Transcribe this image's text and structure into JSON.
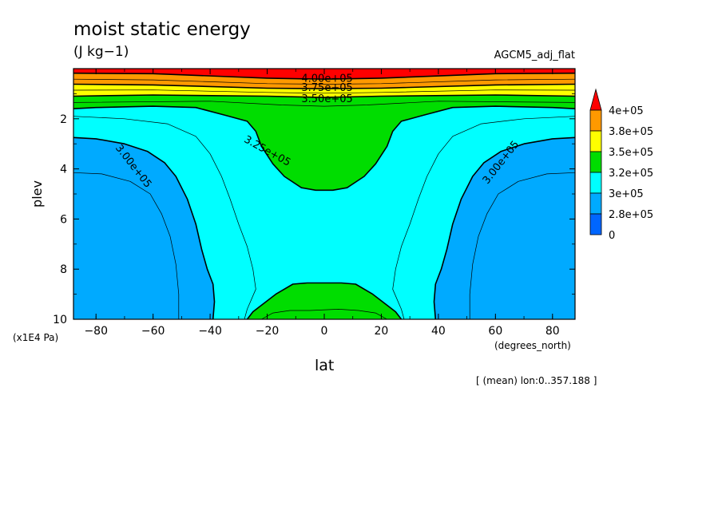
{
  "chart_data": {
    "type": "contour",
    "title": "moist static energy",
    "units": "(J kg−1)",
    "run_label": "AGCM5_adj_flat",
    "xlabel": "lat",
    "x_units": "(degrees_north)",
    "ylabel": "plev",
    "y_units": "(x1E4 Pa)",
    "note": "[ (mean) lon:0..357.188 ]",
    "xlim": [
      -87.9,
      87.9
    ],
    "ylim": [
      10,
      0
    ],
    "x_ticks": [
      "−80",
      "−60",
      "−40",
      "−20",
      "0",
      "20",
      "40",
      "60",
      "80"
    ],
    "x_tick_values": [
      -80,
      -60,
      -40,
      -20,
      0,
      20,
      40,
      60,
      80
    ],
    "y_ticks": [
      "2",
      "4",
      "6",
      "8",
      "10"
    ],
    "y_tick_values": [
      2,
      4,
      6,
      8,
      10
    ],
    "contour_labels": [
      "4.00e+05",
      "3.75e+05",
      "3.50e+05",
      "3.25e+05",
      "3.00e+05",
      "3.00e+05"
    ],
    "colorbar": {
      "labels": [
        "4e+05",
        "3.8e+05",
        "3.5e+05",
        "3.2e+05",
        "3e+05",
        "2.8e+05",
        "0"
      ],
      "colors": [
        "#ff0000",
        "#ff9900",
        "#ffff00",
        "#00dd00",
        "#00ffff",
        "#00aaff",
        "#0066ff"
      ],
      "extend_top": true
    },
    "regions": [
      {
        "name": "3e+05-3.25e+05",
        "color": "#00ffff",
        "polygon": [
          [
            -87.9,
            10
          ],
          [
            87.9,
            10
          ],
          [
            87.9,
            0
          ],
          [
            -87.9,
            0
          ]
        ]
      },
      {
        "name": "2.75e+05-3e+05 south",
        "color": "#00aaff",
        "polygon": [
          [
            -87.9,
            2.75
          ],
          [
            -80,
            2.8
          ],
          [
            -70,
            3.0
          ],
          [
            -62,
            3.3
          ],
          [
            -56,
            3.75
          ],
          [
            -52,
            4.3
          ],
          [
            -48,
            5.2
          ],
          [
            -45,
            6.2
          ],
          [
            -43,
            7.2
          ],
          [
            -41,
            8.0
          ],
          [
            -39,
            8.6
          ],
          [
            -38.5,
            9.3
          ],
          [
            -39,
            10
          ],
          [
            -87.9,
            10
          ]
        ]
      },
      {
        "name": "2.75e+05-3e+05 north",
        "color": "#00aaff",
        "polygon": [
          [
            87.9,
            2.75
          ],
          [
            80,
            2.8
          ],
          [
            70,
            3.0
          ],
          [
            62,
            3.3
          ],
          [
            56,
            3.75
          ],
          [
            52,
            4.3
          ],
          [
            48,
            5.2
          ],
          [
            45,
            6.2
          ],
          [
            43,
            7.2
          ],
          [
            41,
            8.0
          ],
          [
            39,
            8.6
          ],
          [
            38.5,
            9.3
          ],
          [
            39,
            10
          ],
          [
            87.9,
            10
          ]
        ]
      },
      {
        "name": "3.25e+05-3.5e+05",
        "color": "#00dd00",
        "polygon": [
          [
            -87.9,
            1.6
          ],
          [
            -80,
            1.55
          ],
          [
            -60,
            1.5
          ],
          [
            -45,
            1.55
          ],
          [
            -35,
            1.85
          ],
          [
            -27,
            2.1
          ],
          [
            -24,
            2.5
          ],
          [
            -22,
            3.1
          ],
          [
            -18,
            3.8
          ],
          [
            -14,
            4.3
          ],
          [
            -8,
            4.75
          ],
          [
            -3,
            4.85
          ],
          [
            3,
            4.85
          ],
          [
            8,
            4.75
          ],
          [
            14,
            4.3
          ],
          [
            18,
            3.8
          ],
          [
            22,
            3.1
          ],
          [
            24,
            2.5
          ],
          [
            27,
            2.1
          ],
          [
            35,
            1.85
          ],
          [
            45,
            1.55
          ],
          [
            60,
            1.5
          ],
          [
            80,
            1.55
          ],
          [
            87.9,
            1.6
          ],
          [
            87.9,
            0
          ],
          [
            -87.9,
            0
          ]
        ]
      },
      {
        "name": "3.25e+05-3.5e+05 surface",
        "color": "#00dd00",
        "polygon": [
          [
            -27,
            10
          ],
          [
            -25,
            9.7
          ],
          [
            -21,
            9.35
          ],
          [
            -17,
            9.0
          ],
          [
            -11,
            8.6
          ],
          [
            -6,
            8.55
          ],
          [
            6,
            8.55
          ],
          [
            11,
            8.6
          ],
          [
            17,
            9.0
          ],
          [
            21,
            9.35
          ],
          [
            25,
            9.7
          ],
          [
            27,
            10
          ]
        ]
      },
      {
        "name": "3.5e+05-3.75e+05",
        "color": "#ffff00",
        "polygon": [
          [
            -87.9,
            1.1
          ],
          [
            -60,
            1.05
          ],
          [
            -20,
            1.1
          ],
          [
            0,
            1.15
          ],
          [
            20,
            1.1
          ],
          [
            60,
            1.05
          ],
          [
            87.9,
            1.1
          ],
          [
            87.9,
            0
          ],
          [
            -87.9,
            0
          ]
        ]
      },
      {
        "name": "3.75e+05-4e+05",
        "color": "#ff9900",
        "polygon": [
          [
            -87.9,
            0.62
          ],
          [
            -60,
            0.65
          ],
          [
            -20,
            0.78
          ],
          [
            0,
            0.8
          ],
          [
            20,
            0.78
          ],
          [
            60,
            0.65
          ],
          [
            87.9,
            0.62
          ],
          [
            87.9,
            0
          ],
          [
            -87.9,
            0
          ]
        ]
      },
      {
        "name": ">4e+05",
        "color": "#ff0000",
        "polygon": [
          [
            -87.9,
            0.18
          ],
          [
            -60,
            0.2
          ],
          [
            -20,
            0.38
          ],
          [
            0,
            0.42
          ],
          [
            20,
            0.38
          ],
          [
            60,
            0.2
          ],
          [
            87.9,
            0.18
          ],
          [
            87.9,
            0
          ],
          [
            -87.9,
            0
          ]
        ]
      }
    ],
    "contours": [
      {
        "level": "3.00e+05",
        "bold": true,
        "points": [
          [
            -87.9,
            2.75
          ],
          [
            -80,
            2.8
          ],
          [
            -70,
            3.0
          ],
          [
            -62,
            3.3
          ],
          [
            -56,
            3.75
          ],
          [
            -52,
            4.3
          ],
          [
            -48,
            5.2
          ],
          [
            -45,
            6.2
          ],
          [
            -43,
            7.2
          ],
          [
            -41,
            8.0
          ],
          [
            -39,
            8.6
          ],
          [
            -38.5,
            9.3
          ],
          [
            -39,
            10
          ]
        ]
      },
      {
        "level": "3.00e+05",
        "bold": true,
        "points": [
          [
            87.9,
            2.75
          ],
          [
            80,
            2.8
          ],
          [
            70,
            3.0
          ],
          [
            62,
            3.3
          ],
          [
            56,
            3.75
          ],
          [
            52,
            4.3
          ],
          [
            48,
            5.2
          ],
          [
            45,
            6.2
          ],
          [
            43,
            7.2
          ],
          [
            41,
            8.0
          ],
          [
            39,
            8.6
          ],
          [
            38.5,
            9.3
          ],
          [
            39,
            10
          ]
        ]
      },
      {
        "level": "2.875e+05",
        "bold": false,
        "points": [
          [
            -87.9,
            4.15
          ],
          [
            -78,
            4.2
          ],
          [
            -68,
            4.5
          ],
          [
            -61,
            5.0
          ],
          [
            -57,
            5.8
          ],
          [
            -54,
            6.7
          ],
          [
            -52,
            7.8
          ],
          [
            -51,
            9.0
          ],
          [
            -51,
            10
          ]
        ]
      },
      {
        "level": "2.875e+05",
        "bold": false,
        "points": [
          [
            87.9,
            4.15
          ],
          [
            78,
            4.2
          ],
          [
            68,
            4.5
          ],
          [
            61,
            5.0
          ],
          [
            57,
            5.8
          ],
          [
            54,
            6.7
          ],
          [
            52,
            7.8
          ],
          [
            51,
            9.0
          ],
          [
            51,
            10
          ]
        ]
      },
      {
        "level": "3.125e+05",
        "bold": false,
        "points": [
          [
            -87.9,
            1.9
          ],
          [
            -70,
            2.0
          ],
          [
            -55,
            2.2
          ],
          [
            -45,
            2.7
          ],
          [
            -40,
            3.4
          ],
          [
            -36,
            4.3
          ],
          [
            -33,
            5.2
          ],
          [
            -30,
            6.2
          ],
          [
            -27,
            7.1
          ],
          [
            -25,
            8.0
          ],
          [
            -24,
            8.8
          ],
          [
            -27,
            9.6
          ],
          [
            -28,
            10
          ]
        ]
      },
      {
        "level": "3.125e+05",
        "bold": false,
        "points": [
          [
            87.9,
            1.9
          ],
          [
            70,
            2.0
          ],
          [
            55,
            2.2
          ],
          [
            45,
            2.7
          ],
          [
            40,
            3.4
          ],
          [
            36,
            4.3
          ],
          [
            33,
            5.2
          ],
          [
            30,
            6.2
          ],
          [
            27,
            7.1
          ],
          [
            25,
            8.0
          ],
          [
            24,
            8.8
          ],
          [
            27,
            9.6
          ],
          [
            28,
            10
          ]
        ]
      },
      {
        "level": "3.25e+05",
        "bold": true,
        "points": [
          [
            -87.9,
            1.6
          ],
          [
            -80,
            1.55
          ],
          [
            -60,
            1.5
          ],
          [
            -45,
            1.55
          ],
          [
            -35,
            1.85
          ],
          [
            -27,
            2.1
          ],
          [
            -24,
            2.5
          ],
          [
            -22,
            3.1
          ],
          [
            -18,
            3.8
          ],
          [
            -14,
            4.3
          ],
          [
            -8,
            4.75
          ],
          [
            -3,
            4.85
          ],
          [
            3,
            4.85
          ],
          [
            8,
            4.75
          ],
          [
            14,
            4.3
          ],
          [
            18,
            3.8
          ],
          [
            22,
            3.1
          ],
          [
            24,
            2.5
          ],
          [
            27,
            2.1
          ],
          [
            35,
            1.85
          ],
          [
            45,
            1.55
          ],
          [
            60,
            1.5
          ],
          [
            80,
            1.55
          ],
          [
            87.9,
            1.6
          ]
        ]
      },
      {
        "level": "3.25e+05",
        "bold": true,
        "points": [
          [
            -27,
            10
          ],
          [
            -25,
            9.7
          ],
          [
            -21,
            9.35
          ],
          [
            -17,
            9.0
          ],
          [
            -11,
            8.6
          ],
          [
            -6,
            8.55
          ],
          [
            6,
            8.55
          ],
          [
            11,
            8.6
          ],
          [
            17,
            9.0
          ],
          [
            21,
            9.35
          ],
          [
            25,
            9.7
          ],
          [
            27,
            10
          ]
        ]
      },
      {
        "level": "3.375e+05",
        "bold": false,
        "points": [
          [
            -87.9,
            1.35
          ],
          [
            -40,
            1.3
          ],
          [
            -15,
            1.45
          ],
          [
            0,
            1.5
          ],
          [
            15,
            1.45
          ],
          [
            40,
            1.3
          ],
          [
            87.9,
            1.35
          ]
        ]
      },
      {
        "level": "3.375e+05",
        "bold": false,
        "points": [
          [
            -22,
            10
          ],
          [
            -18,
            9.75
          ],
          [
            -12,
            9.65
          ],
          [
            -5,
            9.65
          ],
          [
            5,
            9.6
          ],
          [
            12,
            9.65
          ],
          [
            18,
            9.75
          ],
          [
            22,
            10
          ]
        ]
      },
      {
        "level": "3.50e+05",
        "bold": true,
        "points": [
          [
            -87.9,
            1.1
          ],
          [
            -60,
            1.05
          ],
          [
            -20,
            1.1
          ],
          [
            0,
            1.15
          ],
          [
            20,
            1.1
          ],
          [
            60,
            1.05
          ],
          [
            87.9,
            1.1
          ]
        ]
      },
      {
        "level": "3.625e+05",
        "bold": false,
        "points": [
          [
            -87.9,
            0.86
          ],
          [
            -60,
            0.85
          ],
          [
            -20,
            0.95
          ],
          [
            0,
            0.98
          ],
          [
            20,
            0.95
          ],
          [
            60,
            0.85
          ],
          [
            87.9,
            0.86
          ]
        ]
      },
      {
        "level": "3.75e+05",
        "bold": true,
        "points": [
          [
            -87.9,
            0.62
          ],
          [
            -60,
            0.65
          ],
          [
            -20,
            0.78
          ],
          [
            0,
            0.8
          ],
          [
            20,
            0.78
          ],
          [
            60,
            0.65
          ],
          [
            87.9,
            0.62
          ]
        ]
      },
      {
        "level": "3.875e+05",
        "bold": false,
        "points": [
          [
            -87.9,
            0.42
          ],
          [
            -60,
            0.45
          ],
          [
            -20,
            0.6
          ],
          [
            0,
            0.62
          ],
          [
            20,
            0.6
          ],
          [
            60,
            0.45
          ],
          [
            87.9,
            0.42
          ]
        ]
      },
      {
        "level": "4.00e+05",
        "bold": true,
        "points": [
          [
            -87.9,
            0.18
          ],
          [
            -60,
            0.2
          ],
          [
            -20,
            0.38
          ],
          [
            0,
            0.42
          ],
          [
            20,
            0.38
          ],
          [
            60,
            0.2
          ],
          [
            87.9,
            0.18
          ]
        ]
      }
    ],
    "label_positions": [
      {
        "text_index": 0,
        "x": 1,
        "y": 0.42,
        "angle": 0
      },
      {
        "text_index": 1,
        "x": 1,
        "y": 0.78,
        "angle": 0
      },
      {
        "text_index": 2,
        "x": 1,
        "y": 1.22,
        "angle": 0
      },
      {
        "text_index": 3,
        "x": -20,
        "y": 3.3,
        "angle": 29
      },
      {
        "text_index": 4,
        "x": -67,
        "y": 3.9,
        "angle": 52
      },
      {
        "text_index": 5,
        "x": 62,
        "y": 3.75,
        "angle": -52
      }
    ]
  }
}
